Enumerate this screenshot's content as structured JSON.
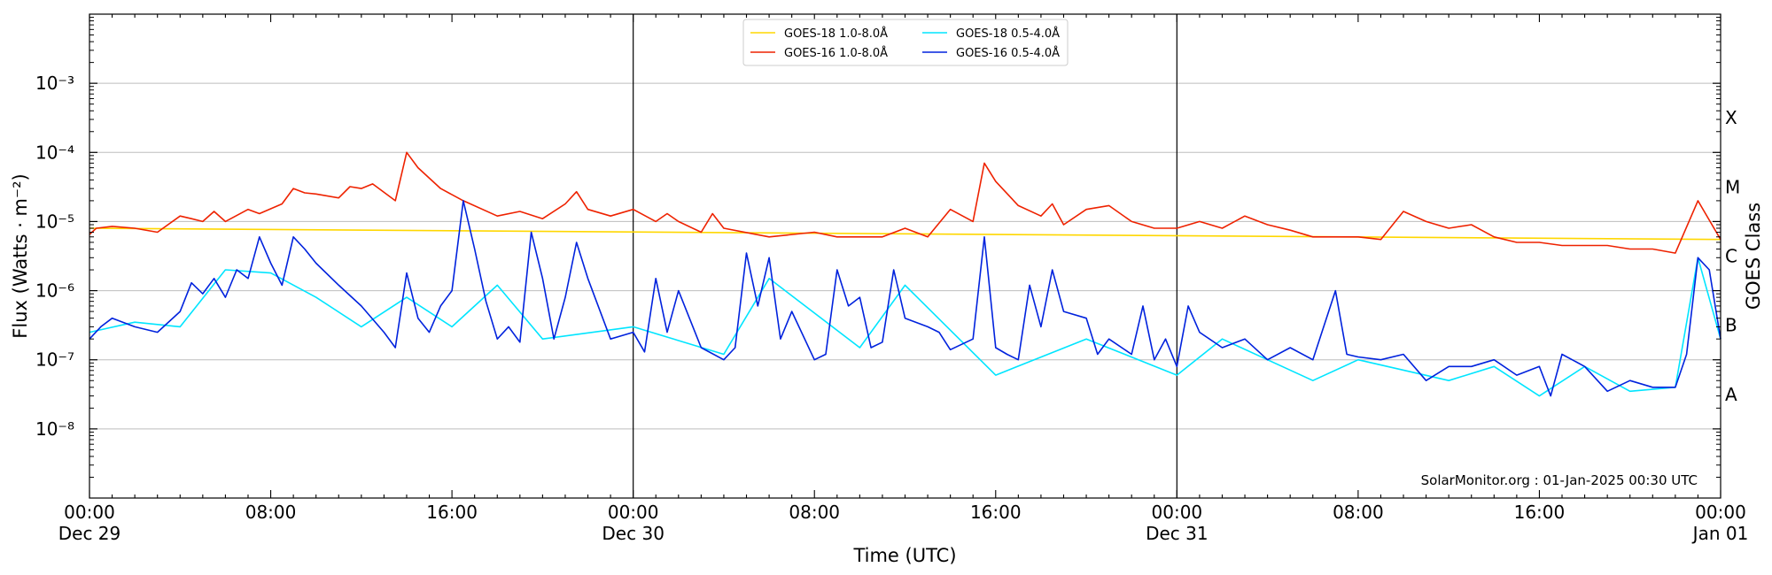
{
  "chart_data": {
    "type": "line",
    "title": "",
    "xlabel": "Time (UTC)",
    "ylabel": "Flux (Watts · m⁻²)",
    "y2label": "GOES Class",
    "yscale": "log",
    "ylim": [
      1e-09,
      0.01
    ],
    "xlim_hours": [
      0,
      72
    ],
    "grid": "horizontal",
    "legend_position": "top-center",
    "annotation": "SolarMonitor.org : 01-Jan-2025 00:30 UTC",
    "x_ticks": [
      {
        "hour": 0,
        "time": "00:00",
        "date": "Dec 29"
      },
      {
        "hour": 8,
        "time": "08:00",
        "date": ""
      },
      {
        "hour": 16,
        "time": "16:00",
        "date": ""
      },
      {
        "hour": 24,
        "time": "00:00",
        "date": "Dec 30"
      },
      {
        "hour": 32,
        "time": "08:00",
        "date": ""
      },
      {
        "hour": 40,
        "time": "16:00",
        "date": ""
      },
      {
        "hour": 48,
        "time": "00:00",
        "date": "Dec 31"
      },
      {
        "hour": 56,
        "time": "08:00",
        "date": ""
      },
      {
        "hour": 64,
        "time": "16:00",
        "date": ""
      },
      {
        "hour": 72,
        "time": "00:00",
        "date": "Jan 01"
      }
    ],
    "day_boundaries": [
      24,
      48
    ],
    "y_ticks": [
      {
        "exp": -8,
        "label": "10⁻⁸"
      },
      {
        "exp": -7,
        "label": "10⁻⁷"
      },
      {
        "exp": -6,
        "label": "10⁻⁶"
      },
      {
        "exp": -5,
        "label": "10⁻⁵"
      },
      {
        "exp": -4,
        "label": "10⁻⁴"
      },
      {
        "exp": -3,
        "label": "10⁻³"
      }
    ],
    "class_labels": [
      {
        "label": "X",
        "exp": -3.5
      },
      {
        "label": "M",
        "exp": -4.5
      },
      {
        "label": "C",
        "exp": -5.5
      },
      {
        "label": "B",
        "exp": -6.5
      },
      {
        "label": "A",
        "exp": -7.5
      }
    ],
    "series": [
      {
        "name": "GOES-18 1.0-8.0Å",
        "color": "#ffd700",
        "points": [
          [
            0,
            8e-06
          ],
          [
            72,
            5.5e-06
          ]
        ]
      },
      {
        "name": "GOES-18 0.5-4.0Å",
        "color": "#00e5ff",
        "points": [
          [
            0,
            2.5e-07
          ],
          [
            2,
            3.5e-07
          ],
          [
            4,
            3e-07
          ],
          [
            6,
            2e-06
          ],
          [
            8,
            1.8e-06
          ],
          [
            10,
            8e-07
          ],
          [
            12,
            3e-07
          ],
          [
            14,
            8e-07
          ],
          [
            16,
            3e-07
          ],
          [
            18,
            1.2e-06
          ],
          [
            20,
            2e-07
          ],
          [
            24,
            3e-07
          ],
          [
            28,
            1.2e-07
          ],
          [
            30,
            1.5e-06
          ],
          [
            34,
            1.5e-07
          ],
          [
            36,
            1.2e-06
          ],
          [
            40,
            6e-08
          ],
          [
            44,
            2e-07
          ],
          [
            48,
            6e-08
          ],
          [
            50,
            2e-07
          ],
          [
            54,
            5e-08
          ],
          [
            56,
            1e-07
          ],
          [
            60,
            5e-08
          ],
          [
            62,
            8e-08
          ],
          [
            64,
            3e-08
          ],
          [
            66,
            8e-08
          ],
          [
            68,
            3.5e-08
          ],
          [
            70,
            4e-08
          ],
          [
            71,
            3e-06
          ],
          [
            72,
            2e-07
          ]
        ]
      },
      {
        "name": "GOES-16 1.0-8.0Å",
        "color": "#ee2200",
        "points": [
          [
            0,
            6.5e-06
          ],
          [
            0.3,
            8e-06
          ],
          [
            1,
            8.5e-06
          ],
          [
            2,
            8e-06
          ],
          [
            3,
            7e-06
          ],
          [
            4,
            1.2e-05
          ],
          [
            4.5,
            1.1e-05
          ],
          [
            5,
            1e-05
          ],
          [
            5.5,
            1.4e-05
          ],
          [
            6,
            1e-05
          ],
          [
            7,
            1.5e-05
          ],
          [
            7.5,
            1.3e-05
          ],
          [
            8.5,
            1.8e-05
          ],
          [
            9,
            3e-05
          ],
          [
            9.5,
            2.6e-05
          ],
          [
            10,
            2.5e-05
          ],
          [
            11,
            2.2e-05
          ],
          [
            11.5,
            3.2e-05
          ],
          [
            12,
            3e-05
          ],
          [
            12.5,
            3.5e-05
          ],
          [
            13.5,
            2e-05
          ],
          [
            14,
            0.0001
          ],
          [
            14.5,
            6e-05
          ],
          [
            15.5,
            3e-05
          ],
          [
            16.5,
            2e-05
          ],
          [
            18,
            1.2e-05
          ],
          [
            19,
            1.4e-05
          ],
          [
            20,
            1.1e-05
          ],
          [
            21,
            1.8e-05
          ],
          [
            21.5,
            2.7e-05
          ],
          [
            22,
            1.5e-05
          ],
          [
            23,
            1.2e-05
          ],
          [
            24,
            1.5e-05
          ],
          [
            25,
            1e-05
          ],
          [
            25.5,
            1.3e-05
          ],
          [
            26,
            1e-05
          ],
          [
            27,
            7e-06
          ],
          [
            27.5,
            1.3e-05
          ],
          [
            28,
            8e-06
          ],
          [
            30,
            6e-06
          ],
          [
            32,
            7e-06
          ],
          [
            33,
            6e-06
          ],
          [
            35,
            6e-06
          ],
          [
            36,
            8e-06
          ],
          [
            37,
            6e-06
          ],
          [
            38,
            1.5e-05
          ],
          [
            39,
            1e-05
          ],
          [
            39.5,
            7e-05
          ],
          [
            40,
            3.8e-05
          ],
          [
            41,
            1.7e-05
          ],
          [
            42,
            1.2e-05
          ],
          [
            42.5,
            1.8e-05
          ],
          [
            43,
            9e-06
          ],
          [
            44,
            1.5e-05
          ],
          [
            45,
            1.7e-05
          ],
          [
            46,
            1e-05
          ],
          [
            47,
            8e-06
          ],
          [
            48,
            8e-06
          ],
          [
            49,
            1e-05
          ],
          [
            50,
            8e-06
          ],
          [
            51,
            1.2e-05
          ],
          [
            52,
            9e-06
          ],
          [
            53,
            7.5e-06
          ],
          [
            54,
            6e-06
          ],
          [
            55,
            6e-06
          ],
          [
            56,
            6e-06
          ],
          [
            57,
            5.5e-06
          ],
          [
            58,
            1.4e-05
          ],
          [
            59,
            1e-05
          ],
          [
            60,
            8e-06
          ],
          [
            61,
            9e-06
          ],
          [
            62,
            6e-06
          ],
          [
            63,
            5e-06
          ],
          [
            64,
            5e-06
          ],
          [
            65,
            4.5e-06
          ],
          [
            66,
            4.5e-06
          ],
          [
            67,
            4.5e-06
          ],
          [
            68,
            4e-06
          ],
          [
            69,
            4e-06
          ],
          [
            70,
            3.5e-06
          ],
          [
            71,
            2e-05
          ],
          [
            72,
            5.5e-06
          ]
        ]
      },
      {
        "name": "GOES-16 0.5-4.0Å",
        "color": "#0022dd",
        "points": [
          [
            0,
            2e-07
          ],
          [
            0.5,
            3e-07
          ],
          [
            1,
            4e-07
          ],
          [
            2,
            3e-07
          ],
          [
            3,
            2.5e-07
          ],
          [
            4,
            5e-07
          ],
          [
            4.5,
            1.3e-06
          ],
          [
            5,
            9e-07
          ],
          [
            5.5,
            1.5e-06
          ],
          [
            6,
            8e-07
          ],
          [
            6.5,
            2e-06
          ],
          [
            7,
            1.5e-06
          ],
          [
            7.5,
            6e-06
          ],
          [
            8,
            2.5e-06
          ],
          [
            8.5,
            1.2e-06
          ],
          [
            9,
            6e-06
          ],
          [
            9.5,
            4e-06
          ],
          [
            10,
            2.5e-06
          ],
          [
            11,
            1.2e-06
          ],
          [
            12,
            6e-07
          ],
          [
            13,
            2.5e-07
          ],
          [
            13.5,
            1.5e-07
          ],
          [
            14,
            1.8e-06
          ],
          [
            14.5,
            4e-07
          ],
          [
            15,
            2.5e-07
          ],
          [
            15.5,
            6e-07
          ],
          [
            16,
            1e-06
          ],
          [
            16.5,
            2e-05
          ],
          [
            17,
            4e-06
          ],
          [
            17.5,
            7e-07
          ],
          [
            18,
            2e-07
          ],
          [
            18.5,
            3e-07
          ],
          [
            19,
            1.8e-07
          ],
          [
            19.5,
            7e-06
          ],
          [
            20,
            1.5e-06
          ],
          [
            20.5,
            2e-07
          ],
          [
            21,
            8e-07
          ],
          [
            21.5,
            5e-06
          ],
          [
            22,
            1.5e-06
          ],
          [
            23,
            2e-07
          ],
          [
            24,
            2.5e-07
          ],
          [
            24.5,
            1.3e-07
          ],
          [
            25,
            1.5e-06
          ],
          [
            25.5,
            2.5e-07
          ],
          [
            26,
            1e-06
          ],
          [
            27,
            1.5e-07
          ],
          [
            28,
            1e-07
          ],
          [
            28.5,
            1.5e-07
          ],
          [
            29,
            3.5e-06
          ],
          [
            29.5,
            6e-07
          ],
          [
            30,
            3e-06
          ],
          [
            30.5,
            2e-07
          ],
          [
            31,
            5e-07
          ],
          [
            32,
            1e-07
          ],
          [
            32.5,
            1.2e-07
          ],
          [
            33,
            2e-06
          ],
          [
            33.5,
            6e-07
          ],
          [
            34,
            8e-07
          ],
          [
            34.5,
            1.5e-07
          ],
          [
            35,
            1.8e-07
          ],
          [
            35.5,
            2e-06
          ],
          [
            36,
            4e-07
          ],
          [
            37,
            3e-07
          ],
          [
            37.5,
            2.5e-07
          ],
          [
            38,
            1.4e-07
          ],
          [
            39,
            2e-07
          ],
          [
            39.5,
            6e-06
          ],
          [
            40,
            1.5e-07
          ],
          [
            40.5,
            1.2e-07
          ],
          [
            41,
            1e-07
          ],
          [
            41.5,
            1.2e-06
          ],
          [
            42,
            3e-07
          ],
          [
            42.5,
            2e-06
          ],
          [
            43,
            5e-07
          ],
          [
            44,
            4e-07
          ],
          [
            44.5,
            1.2e-07
          ],
          [
            45,
            2e-07
          ],
          [
            46,
            1.2e-07
          ],
          [
            46.5,
            6e-07
          ],
          [
            47,
            1e-07
          ],
          [
            47.5,
            2e-07
          ],
          [
            48,
            8e-08
          ],
          [
            48.5,
            6e-07
          ],
          [
            49,
            2.5e-07
          ],
          [
            50,
            1.5e-07
          ],
          [
            51,
            2e-07
          ],
          [
            52,
            1e-07
          ],
          [
            53,
            1.5e-07
          ],
          [
            54,
            1e-07
          ],
          [
            55,
            1e-06
          ],
          [
            55.5,
            1.2e-07
          ],
          [
            56,
            1.1e-07
          ],
          [
            57,
            1e-07
          ],
          [
            58,
            1.2e-07
          ],
          [
            59,
            5e-08
          ],
          [
            60,
            8e-08
          ],
          [
            61,
            8e-08
          ],
          [
            62,
            1e-07
          ],
          [
            63,
            6e-08
          ],
          [
            64,
            8e-08
          ],
          [
            64.5,
            3e-08
          ],
          [
            65,
            1.2e-07
          ],
          [
            66,
            8e-08
          ],
          [
            67,
            3.5e-08
          ],
          [
            68,
            5e-08
          ],
          [
            69,
            4e-08
          ],
          [
            70,
            4e-08
          ],
          [
            70.5,
            1.2e-07
          ],
          [
            71,
            3e-06
          ],
          [
            71.5,
            2e-06
          ],
          [
            72,
            2e-07
          ]
        ]
      }
    ]
  }
}
